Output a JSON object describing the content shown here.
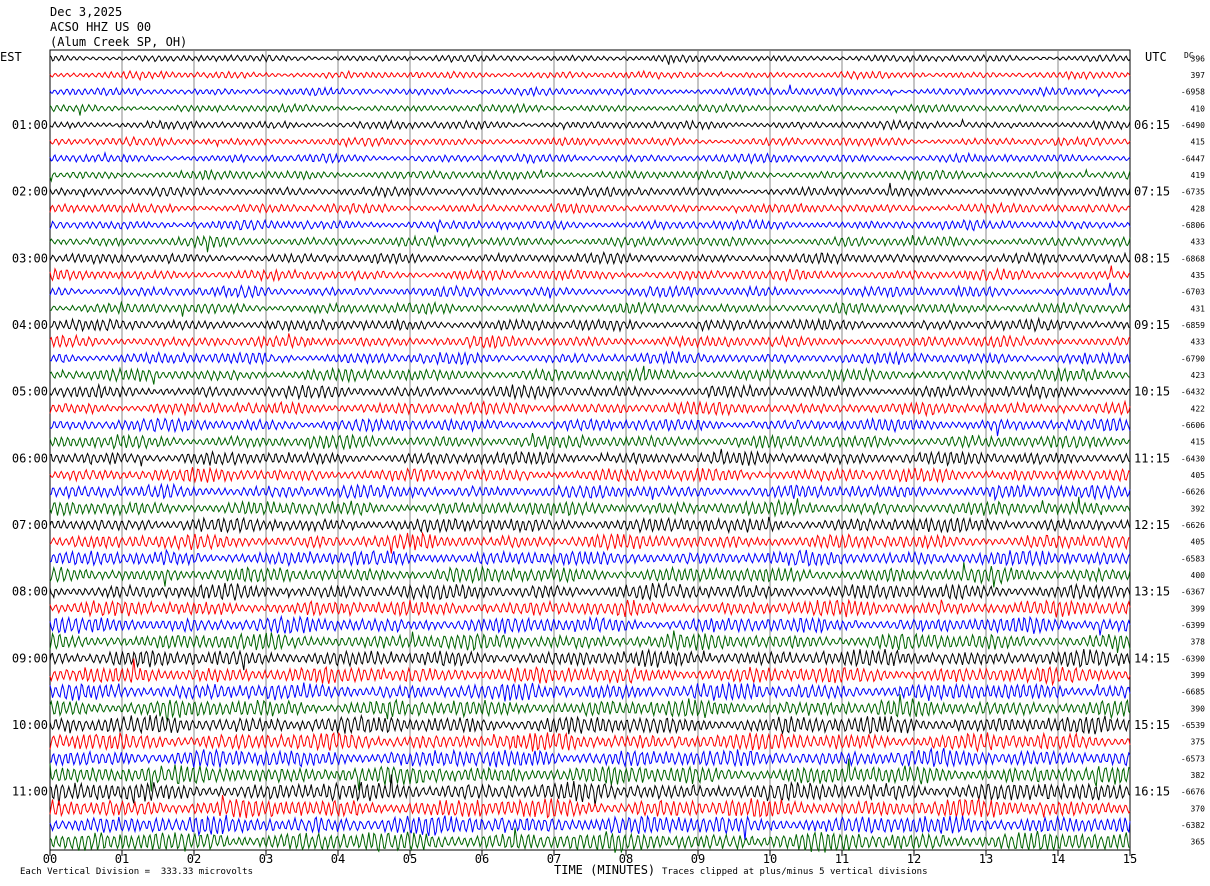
{
  "header": {
    "date": "Dec 3,2025",
    "station": "ACSO HHZ US 00",
    "location": "(Alum Creek SP, OH)"
  },
  "left_zone_label": "EST",
  "right_zone_label": "UTC",
  "dc_header": "DC",
  "footer": {
    "scale_note": "Each Vertical Division =  333.33 microvolts",
    "clip_note": "Traces clipped at plus/minus 5 vertical divisions"
  },
  "trace_colors": [
    "#000000",
    "#ff0000",
    "#0000ff",
    "#006400"
  ],
  "chart_data": {
    "type": "line",
    "title": "Dec 3,2025 ACSO HHZ US 00 (Alum Creek SP, OH)",
    "xlabel": "TIME (MINUTES)",
    "x_range": [
      0,
      15
    ],
    "x_ticks": [
      "00",
      "01",
      "02",
      "03",
      "04",
      "05",
      "06",
      "07",
      "08",
      "09",
      "10",
      "11",
      "12",
      "13",
      "14",
      "15"
    ],
    "trace_count": 48,
    "trace_minutes_each": 15,
    "left_hour_labels": [
      "01:00",
      "02:00",
      "03:00",
      "04:00",
      "05:00",
      "06:00",
      "07:00",
      "08:00",
      "09:00",
      "10:00",
      "11:00"
    ],
    "right_hour_labels": [
      "06:15",
      "07:15",
      "08:15",
      "09:15",
      "10:15",
      "11:15",
      "12:15",
      "13:15",
      "14:15",
      "15:15",
      "16:15"
    ],
    "dc_offsets": [
      "396",
      "397",
      "-6958",
      "410",
      "-6490",
      "415",
      "-6447",
      "419",
      "-6735",
      "428",
      "-6806",
      "433",
      "-6868",
      "435",
      "-6703",
      "431",
      "-6859",
      "433",
      "-6790",
      "423",
      "-6432",
      "422",
      "-6606",
      "415",
      "-6430",
      "405",
      "-6626",
      "392",
      "-6626",
      "405",
      "-6583",
      "400",
      "-6367",
      "399",
      "-6399",
      "378",
      "-6390",
      "399",
      "-6685",
      "390",
      "-6539",
      "375",
      "-6573",
      "382",
      "-6676",
      "370",
      "-6382",
      "365"
    ],
    "vertical_division_microvolts": 333.33,
    "clip_divisions": 5,
    "grid": true
  }
}
